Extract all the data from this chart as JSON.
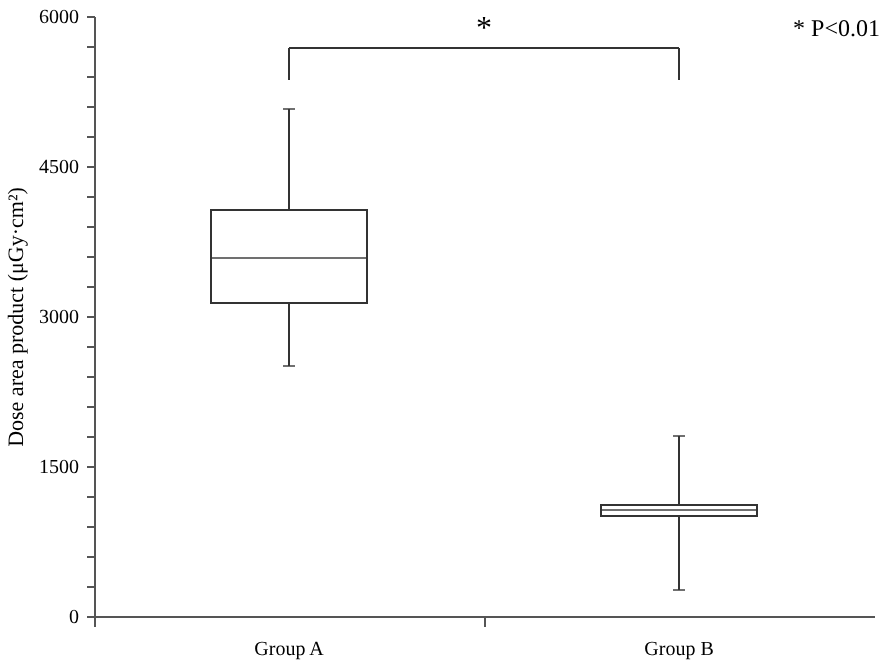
{
  "chart_data": {
    "type": "box",
    "ylabel": "Dose area product (μGy·cm²)",
    "categories": [
      "Group A",
      "Group B"
    ],
    "boxes": [
      {
        "low": 2500,
        "q1": 3130,
        "median": 3580,
        "q3": 4060,
        "high": 5070
      },
      {
        "low": 260,
        "q1": 1000,
        "median": 1060,
        "q3": 1110,
        "high": 1800
      }
    ],
    "color": "#ffffff",
    "ylim": [
      0,
      6000
    ],
    "yticks": [
      0,
      {
        "value": 300,
        "label": null
      },
      {
        "value": 600,
        "label": null
      },
      {
        "value": 900,
        "label": null
      },
      {
        "value": 1200,
        "label": null
      },
      1500,
      {
        "value": 1800,
        "label": null
      },
      {
        "value": 2100,
        "label": null
      },
      {
        "value": 2400,
        "label": null
      },
      {
        "value": 2700,
        "label": null
      },
      3000,
      {
        "value": 3300,
        "label": null
      },
      {
        "value": 3600,
        "label": null
      },
      {
        "value": 3900,
        "label": null
      },
      {
        "value": 4200,
        "label": null
      },
      4500,
      {
        "value": 4800,
        "label": null
      },
      {
        "value": 5100,
        "label": null
      },
      {
        "value": 5400,
        "label": null
      },
      {
        "value": 5700,
        "label": null
      },
      6000
    ],
    "grid": false,
    "annotations": [
      "*",
      "* P<0.01"
    ]
  }
}
